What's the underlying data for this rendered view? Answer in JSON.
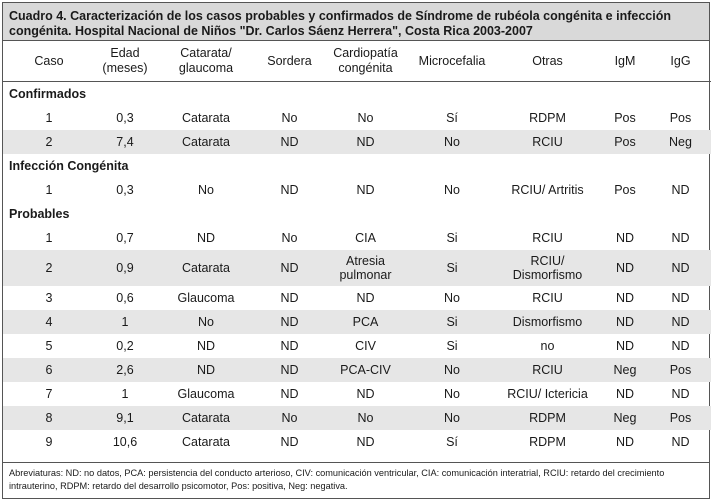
{
  "caption": "Cuadro 4. Caracterización de los casos probables y confirmados de Síndrome de rubéola congénita e infección congénita.  Hospital Nacional de Niños \"Dr. Carlos Sáenz Herrera\", Costa Rica 2003-2007",
  "headers": [
    "Caso",
    "Edad (meses)",
    "Catarata/ glaucoma",
    "Sordera",
    "Cardiopatía congénita",
    "Microcefalia",
    "Otras",
    "IgM",
    "IgG"
  ],
  "sections": [
    {
      "title": "Confirmados",
      "rows": [
        [
          "1",
          "0,3",
          "Catarata",
          "No",
          "No",
          "Sí",
          "RDPM",
          "Pos",
          "Pos"
        ],
        [
          "2",
          "7,4",
          "Catarata",
          "ND",
          "ND",
          "No",
          "RCIU",
          "Pos",
          "Neg"
        ]
      ]
    },
    {
      "title": "Infección Congénita",
      "rows": [
        [
          "1",
          "0,3",
          "No",
          "ND",
          "ND",
          "No",
          "RCIU/ Artritis",
          "Pos",
          "ND"
        ]
      ]
    },
    {
      "title": "Probables",
      "rows": [
        [
          "1",
          "0,7",
          "ND",
          "No",
          "CIA",
          "Si",
          "RCIU",
          "ND",
          "ND"
        ],
        [
          "2",
          "0,9",
          "Catarata",
          "ND",
          "Atresia pulmonar",
          "Si",
          "RCIU/ Dismorfismo",
          "ND",
          "ND"
        ],
        [
          "3",
          "0,6",
          "Glaucoma",
          "ND",
          "ND",
          "No",
          "RCIU",
          "ND",
          "ND"
        ],
        [
          "4",
          "1",
          "No",
          "ND",
          "PCA",
          "Si",
          "Dismorfismo",
          "ND",
          "ND"
        ],
        [
          "5",
          "0,2",
          "ND",
          "ND",
          "CIV",
          "Si",
          "no",
          "ND",
          "ND"
        ],
        [
          "6",
          "2,6",
          "ND",
          "ND",
          "PCA-CIV",
          "No",
          "RCIU",
          "Neg",
          "Pos"
        ],
        [
          "7",
          "1",
          "Glaucoma",
          "ND",
          "ND",
          "No",
          "RCIU/ Ictericia",
          "ND",
          "ND"
        ],
        [
          "8",
          "9,1",
          "Catarata",
          "No",
          "No",
          "No",
          "RDPM",
          "Neg",
          "Pos"
        ],
        [
          "9",
          "10,6",
          "Catarata",
          "ND",
          "ND",
          "Sí",
          "RDPM",
          "ND",
          "ND"
        ]
      ]
    }
  ],
  "footnote": "Abreviaturas: ND: no datos, PCA: persistencia del conducto arterioso, CIV: comunicación ventricular, CIA: comunicación interatrial, RCIU: retardo del crecimiento intrauterino, RDPM: retardo del desarrollo psicomotor, Pos: positiva, Neg: negativa."
}
